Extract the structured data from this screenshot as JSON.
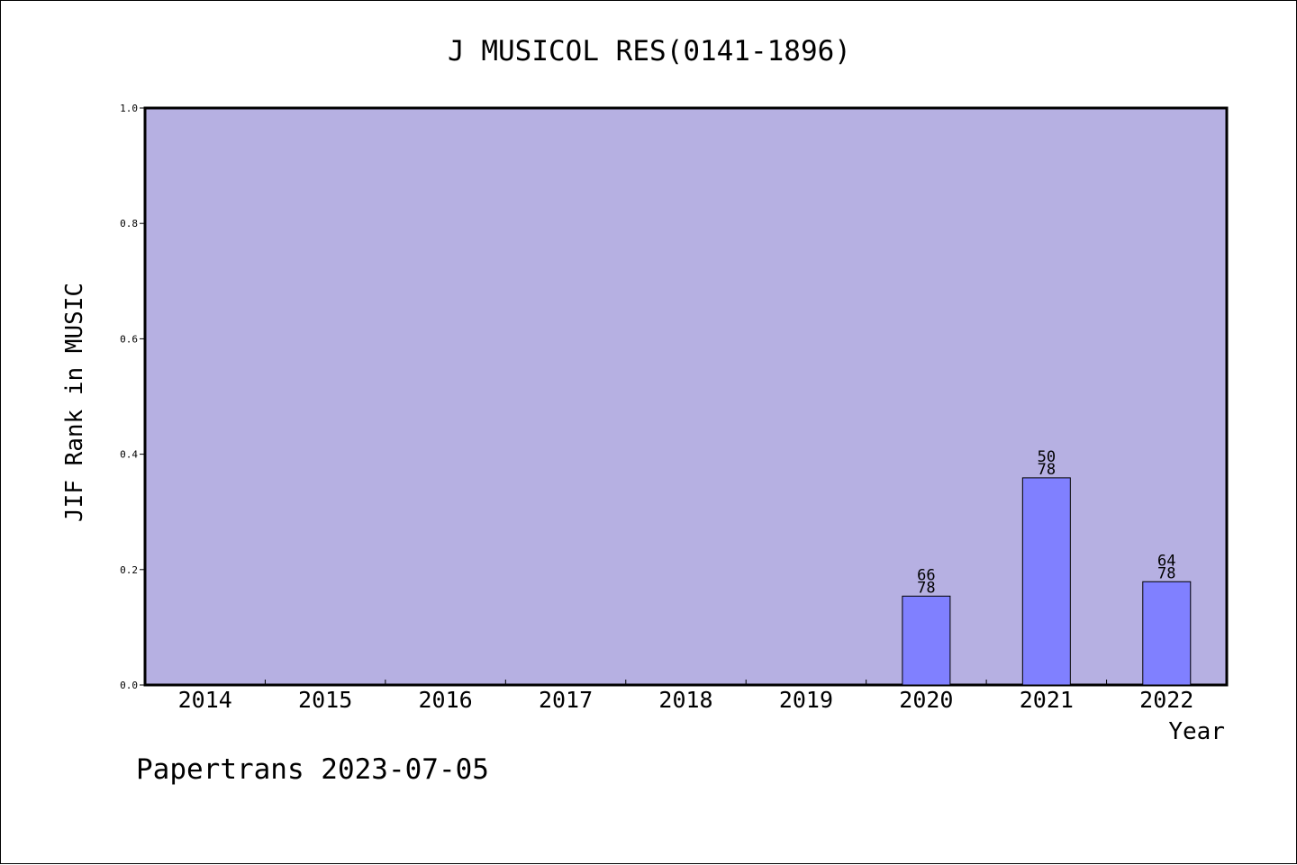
{
  "chart_data": {
    "type": "bar",
    "title": "J MUSICOL RES(0141-1896)",
    "xlabel": "Year",
    "ylabel": "JIF Rank in MUSIC",
    "categories": [
      "2014",
      "2015",
      "2016",
      "2017",
      "2018",
      "2019",
      "2020",
      "2021",
      "2022"
    ],
    "values": [
      null,
      null,
      null,
      null,
      null,
      null,
      0.154,
      0.359,
      0.179
    ],
    "rank_labels": [
      null,
      null,
      null,
      null,
      null,
      null,
      "66",
      "50",
      "64"
    ],
    "total_labels": [
      null,
      null,
      null,
      null,
      null,
      null,
      "78",
      "78",
      "78"
    ],
    "ylim": [
      0,
      1.0
    ],
    "yticks": [
      "0.0",
      "0.2",
      "0.4",
      "0.6",
      "0.8",
      "1.0"
    ],
    "grid": false,
    "colors": {
      "plot_bg": "#b6b0e2",
      "bar": "#8080ff"
    }
  },
  "footer": "Papertrans 2023-07-05"
}
